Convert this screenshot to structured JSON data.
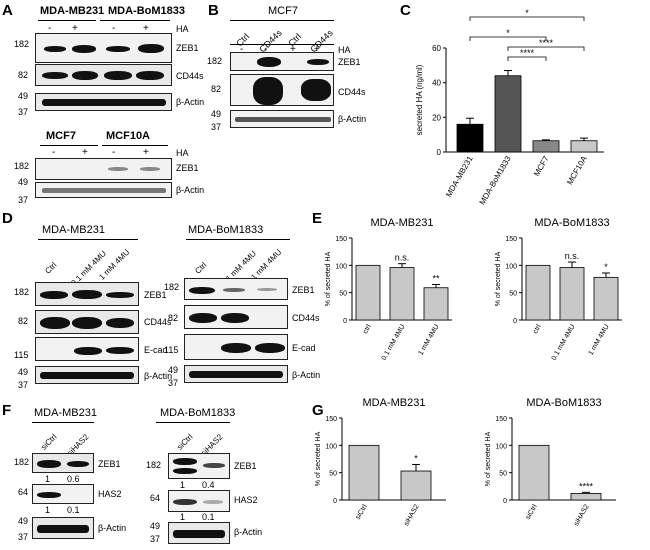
{
  "panels": {
    "A": {
      "label": "A",
      "top_lines": [
        "MDA-MB231",
        "MDA-BoM1833"
      ],
      "bottom_lines": [
        "MCF7",
        "MCF10A"
      ],
      "ha_label": "HA",
      "ha_minus": "-",
      "ha_plus": "+",
      "markers_top": [
        "182",
        "82",
        "49",
        "37"
      ],
      "markers_bottom": [
        "182",
        "49",
        "37"
      ],
      "bands": [
        "ZEB1",
        "CD44s",
        "β-Actin"
      ],
      "bands_bottom": [
        "ZEB1",
        "β-Actin"
      ]
    },
    "B": {
      "label": "B",
      "cell_line": "MCF7",
      "lanes": [
        "Ctrl",
        "CD44s",
        "Ctrl",
        "CD44s"
      ],
      "ha_label": "HA",
      "ha_minus": "-",
      "ha_plus": "+",
      "markers": [
        "182",
        "82",
        "49",
        "37"
      ],
      "bands": [
        "ZEB1",
        "CD44s",
        "β-Actin"
      ]
    },
    "C": {
      "label": "C",
      "sig": [
        "*",
        "*",
        "****",
        "****"
      ]
    },
    "D": {
      "label": "D",
      "left_line": "MDA-MB231",
      "right_line": "MDA-BoM1833",
      "lanes": [
        "Ctrl",
        "0.1 mM 4MU",
        "1 mM 4MU"
      ],
      "markers": [
        "182",
        "82",
        "115",
        "49",
        "37"
      ],
      "bands": [
        "ZEB1",
        "CD44s",
        "E-cad",
        "β-Actin"
      ]
    },
    "E": {
      "label": "E",
      "sig_left": [
        "n.s.",
        "**"
      ],
      "sig_right": [
        "n.s.",
        "*"
      ]
    },
    "F": {
      "label": "F",
      "left_line": "MDA-MB231",
      "right_line": "MDA-BoM1833",
      "lanes": [
        "siCtrl",
        "siHAS2"
      ],
      "markers_left": [
        "182",
        "64",
        "49",
        "37"
      ],
      "markers_right": [
        "182",
        "64",
        "49",
        "37"
      ],
      "bands": [
        "ZEB1",
        "HAS2",
        "β-Actin"
      ],
      "quant_left_zeb1": [
        "1",
        "0.6"
      ],
      "quant_left_has2": [
        "1",
        "0.1"
      ],
      "quant_right_zeb1": [
        "1",
        "0.4"
      ],
      "quant_right_has2": [
        "1",
        "0.1"
      ]
    },
    "G": {
      "label": "G",
      "sig_left": "*",
      "sig_right": "****"
    }
  },
  "chart_data": [
    {
      "id": "C",
      "type": "bar",
      "categories": [
        "MDA-MB231",
        "MDA-BoM1833",
        "MCF7",
        "MCF10A"
      ],
      "values": [
        16,
        44,
        6.5,
        6.5
      ],
      "errors": [
        3.5,
        3,
        0.5,
        1.5
      ],
      "bar_colors": [
        "#000000",
        "#555555",
        "#888888",
        "#c8c8c8"
      ],
      "ylabel": "secreted HA (ng/ml)",
      "ylim": [
        0,
        60
      ],
      "yticks": [
        "0",
        "20",
        "40",
        "60"
      ]
    },
    {
      "id": "E-left",
      "type": "bar",
      "title": "MDA-MB231",
      "categories": [
        "ctrl",
        "0.1 mM 4MU",
        "1 mM 4MU"
      ],
      "values": [
        100,
        96,
        59
      ],
      "errors": [
        0,
        7,
        6
      ],
      "ylabel": "% of secreted HA",
      "ylim": [
        0,
        150
      ],
      "yticks": [
        "0",
        "50",
        "100",
        "150"
      ]
    },
    {
      "id": "E-right",
      "type": "bar",
      "title": "MDA-BoM1833",
      "categories": [
        "ctrl",
        "0.1 mM 4MU",
        "1 mM 4MU"
      ],
      "values": [
        100,
        96,
        78
      ],
      "errors": [
        0,
        10,
        8
      ],
      "ylabel": "% of secreted HA",
      "ylim": [
        0,
        150
      ],
      "yticks": [
        "0",
        "50",
        "100",
        "150"
      ]
    },
    {
      "id": "G-left",
      "type": "bar",
      "title": "MDA-MB231",
      "categories": [
        "siCtrl",
        "siHAS2"
      ],
      "values": [
        100,
        53
      ],
      "errors": [
        0,
        12
      ],
      "ylabel": "% of secreted HA",
      "ylim": [
        0,
        150
      ],
      "yticks": [
        "0",
        "50",
        "100",
        "150"
      ]
    },
    {
      "id": "G-right",
      "type": "bar",
      "title": "MDA-BoM1833",
      "categories": [
        "siCtrl",
        "siHAS2"
      ],
      "values": [
        100,
        12
      ],
      "errors": [
        0,
        2
      ],
      "ylabel": "% of secreted HA",
      "ylim": [
        0,
        150
      ],
      "yticks": [
        "0",
        "50",
        "100",
        "150"
      ]
    }
  ],
  "colors": {
    "bar_gray": "#c8c8c8",
    "blot_bg": "#e9e9e9",
    "band": "#111111"
  }
}
